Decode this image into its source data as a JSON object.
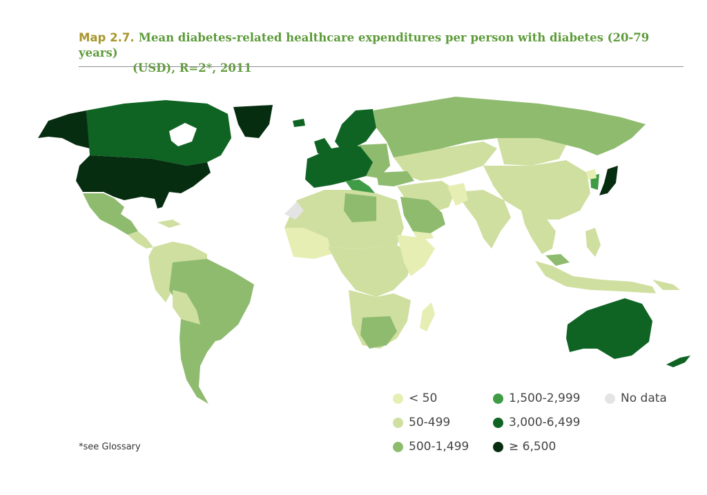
{
  "title": {
    "label": "Map 2.7.",
    "line1": "Mean diabetes-related healthcare expenditures per person with diabetes (20-79 years)",
    "line2": "(USD), R=2*, 2011"
  },
  "legend": [
    {
      "label": "< 50",
      "color": "#e6eeb4"
    },
    {
      "label": "50-499",
      "color": "#cfdfa0"
    },
    {
      "label": "500-1,499",
      "color": "#8fbb6f"
    },
    {
      "label": "1,500-2,999",
      "color": "#3f9b45"
    },
    {
      "label": "3,000-6,499",
      "color": "#0f6424"
    },
    {
      "label": "≥ 6,500",
      "color": "#072d10"
    },
    {
      "label": "No data",
      "color": "#e4e4e4"
    }
  ],
  "footnote": "*see Glossary"
}
